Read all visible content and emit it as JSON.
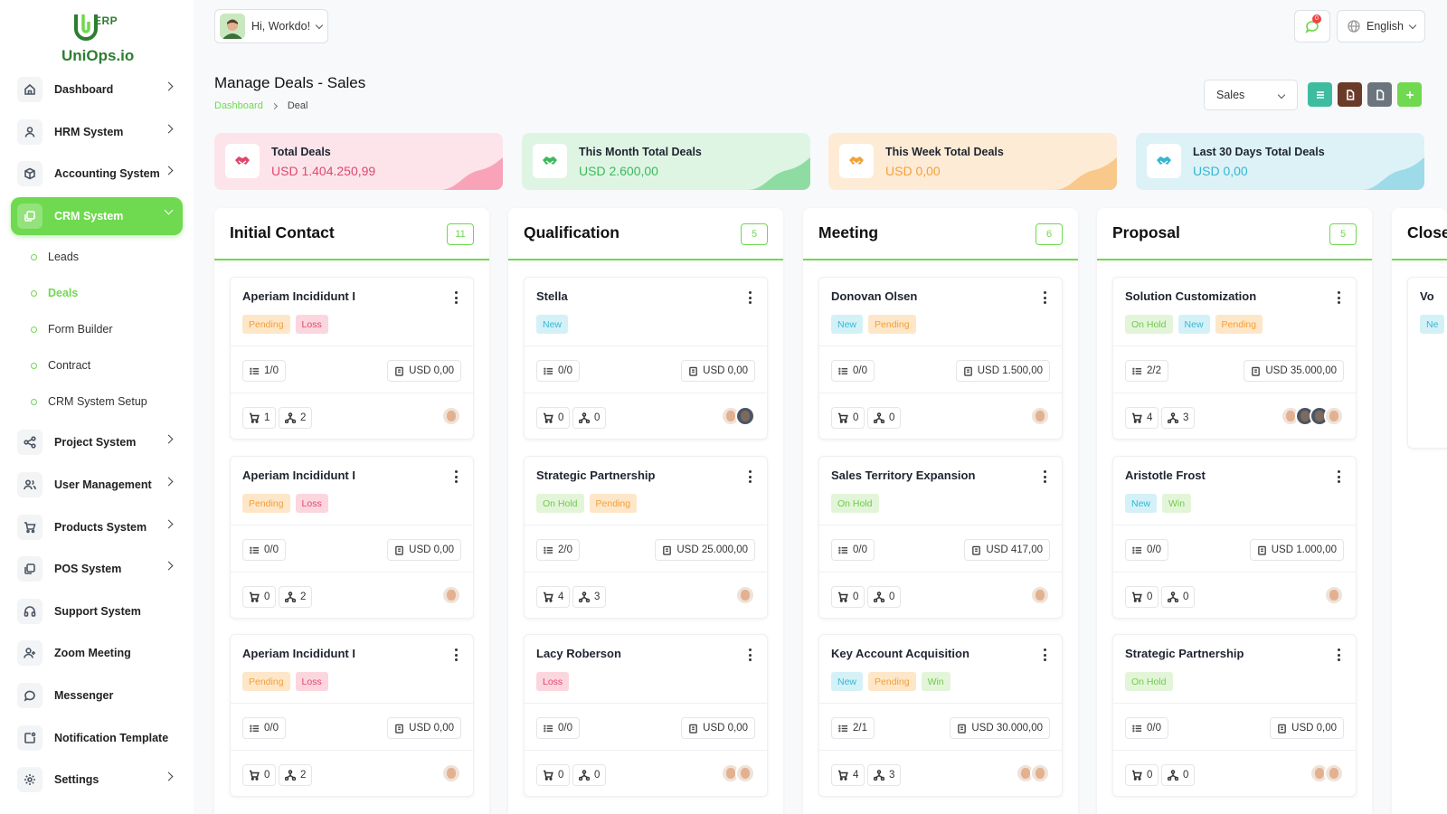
{
  "brand": {
    "name": "UniOps.io",
    "suffix": "ERP"
  },
  "sidebar": {
    "items": [
      {
        "label": "Dashboard",
        "icon": "home-icon",
        "chevron": true
      },
      {
        "label": "HRM System",
        "icon": "user-icon",
        "chevron": true
      },
      {
        "label": "Accounting System",
        "icon": "box-icon",
        "chevron": true
      },
      {
        "label": "CRM System",
        "icon": "layers-icon",
        "chevron": true,
        "active": true
      },
      {
        "label": "Project System",
        "icon": "share-icon",
        "chevron": true
      },
      {
        "label": "User Management",
        "icon": "users-icon",
        "chevron": true
      },
      {
        "label": "Products System",
        "icon": "cart-icon",
        "chevron": true
      },
      {
        "label": "POS System",
        "icon": "layers-icon",
        "chevron": true
      },
      {
        "label": "Support System",
        "icon": "headphones-icon",
        "chevron": false
      },
      {
        "label": "Zoom Meeting",
        "icon": "user-plus-icon",
        "chevron": false
      },
      {
        "label": "Messenger",
        "icon": "message-icon",
        "chevron": false
      },
      {
        "label": "Notification Template",
        "icon": "bell-square-icon",
        "chevron": false
      },
      {
        "label": "Settings",
        "icon": "gear-icon",
        "chevron": true
      }
    ],
    "crm_sub": [
      "Leads",
      "Deals",
      "Form Builder",
      "Contract",
      "CRM System Setup"
    ],
    "crm_sub_active": "Deals"
  },
  "header": {
    "greeting": "Hi, Workdo!",
    "notifications": "0",
    "language": "English"
  },
  "page": {
    "title": "Manage Deals - Sales",
    "breadcrumb": [
      "Dashboard",
      "Deal"
    ],
    "pipeline": "Sales"
  },
  "colors": {
    "accent": "#6fd94f",
    "action_list": "#3ebc9f",
    "action_import": "#6b3b2a",
    "action_export": "#6c757d",
    "action_add": "#6fd94f"
  },
  "stats": [
    {
      "label": "Total Deals",
      "value": "USD 1.404.250,99",
      "bg": "#fce4ea",
      "fg": "#e0476d",
      "wave": "#f8a3b8"
    },
    {
      "label": "This Month Total Deals",
      "value": "USD 2.600,00",
      "bg": "#dff5e3",
      "fg": "#3cb95b",
      "wave": "#8fdca2"
    },
    {
      "label": "This Week Total Deals",
      "value": "USD 0,00",
      "bg": "#fdebd6",
      "fg": "#f3a13a",
      "wave": "#f8c98a"
    },
    {
      "label": "Last 30 Days Total Deals",
      "value": "USD 0,00",
      "bg": "#dcf2f7",
      "fg": "#36b5d2",
      "wave": "#9ddbe8"
    }
  ],
  "columns": [
    {
      "title": "Initial Contact",
      "count": "11",
      "cards": [
        {
          "title": "Aperiam Incididunt I",
          "tags": [
            [
              "Pending",
              "pending"
            ],
            [
              "Loss",
              "loss"
            ]
          ],
          "tasks": "1/0",
          "amount": "USD 0,00",
          "products": "1",
          "sources": "2",
          "avatars": 1,
          "dark": []
        },
        {
          "title": "Aperiam Incididunt I",
          "tags": [
            [
              "Pending",
              "pending"
            ],
            [
              "Loss",
              "loss"
            ]
          ],
          "tasks": "0/0",
          "amount": "USD 0,00",
          "products": "0",
          "sources": "2",
          "avatars": 1,
          "dark": []
        },
        {
          "title": "Aperiam Incididunt I",
          "tags": [
            [
              "Pending",
              "pending"
            ],
            [
              "Loss",
              "loss"
            ]
          ],
          "tasks": "0/0",
          "amount": "USD 0,00",
          "products": "0",
          "sources": "2",
          "avatars": 1,
          "dark": []
        }
      ]
    },
    {
      "title": "Qualification",
      "count": "5",
      "cards": [
        {
          "title": "Stella",
          "tags": [
            [
              "New",
              "new"
            ]
          ],
          "tasks": "0/0",
          "amount": "USD 0,00",
          "products": "0",
          "sources": "0",
          "avatars": 2,
          "dark": [
            1
          ]
        },
        {
          "title": "Strategic Partnership",
          "tags": [
            [
              "On Hold",
              "onhold"
            ],
            [
              "Pending",
              "pending"
            ]
          ],
          "tasks": "2/0",
          "amount": "USD 25.000,00",
          "products": "4",
          "sources": "3",
          "avatars": 1,
          "dark": []
        },
        {
          "title": "Lacy Roberson",
          "tags": [
            [
              "Loss",
              "loss"
            ]
          ],
          "tasks": "0/0",
          "amount": "USD 0,00",
          "products": "0",
          "sources": "0",
          "avatars": 2,
          "dark": []
        }
      ]
    },
    {
      "title": "Meeting",
      "count": "6",
      "cards": [
        {
          "title": "Donovan Olsen",
          "tags": [
            [
              "New",
              "new"
            ],
            [
              "Pending",
              "pending"
            ]
          ],
          "tasks": "0/0",
          "amount": "USD 1.500,00",
          "products": "0",
          "sources": "0",
          "avatars": 1,
          "dark": []
        },
        {
          "title": "Sales Territory Expansion",
          "tags": [
            [
              "On Hold",
              "onhold"
            ]
          ],
          "tasks": "0/0",
          "amount": "USD 417,00",
          "products": "0",
          "sources": "0",
          "avatars": 1,
          "dark": []
        },
        {
          "title": "Key Account Acquisition",
          "tags": [
            [
              "New",
              "new"
            ],
            [
              "Pending",
              "pending"
            ],
            [
              "Win",
              "win"
            ]
          ],
          "tasks": "2/1",
          "amount": "USD 30.000,00",
          "products": "4",
          "sources": "3",
          "avatars": 2,
          "dark": []
        }
      ]
    },
    {
      "title": "Proposal",
      "count": "5",
      "cards": [
        {
          "title": "Solution Customization",
          "tags": [
            [
              "On Hold",
              "onhold"
            ],
            [
              "New",
              "new"
            ],
            [
              "Pending",
              "pending"
            ]
          ],
          "tasks": "2/2",
          "amount": "USD 35.000,00",
          "products": "4",
          "sources": "3",
          "avatars": 4,
          "dark": [
            1,
            2
          ]
        },
        {
          "title": "Aristotle Frost",
          "tags": [
            [
              "New",
              "new"
            ],
            [
              "Win",
              "win"
            ]
          ],
          "tasks": "0/0",
          "amount": "USD 1.000,00",
          "products": "0",
          "sources": "0",
          "avatars": 1,
          "dark": []
        },
        {
          "title": "Strategic Partnership",
          "tags": [
            [
              "On Hold",
              "onhold"
            ]
          ],
          "tasks": "0/0",
          "amount": "USD 0,00",
          "products": "0",
          "sources": "0",
          "avatars": 2,
          "dark": []
        }
      ]
    },
    {
      "title": "Close",
      "count": "",
      "cards": [
        {
          "title": "Vo",
          "tags": [
            [
              "Ne",
              "new"
            ]
          ],
          "tasks": "",
          "amount": "",
          "products": "",
          "sources": "",
          "avatars": 0,
          "dark": []
        }
      ]
    }
  ]
}
